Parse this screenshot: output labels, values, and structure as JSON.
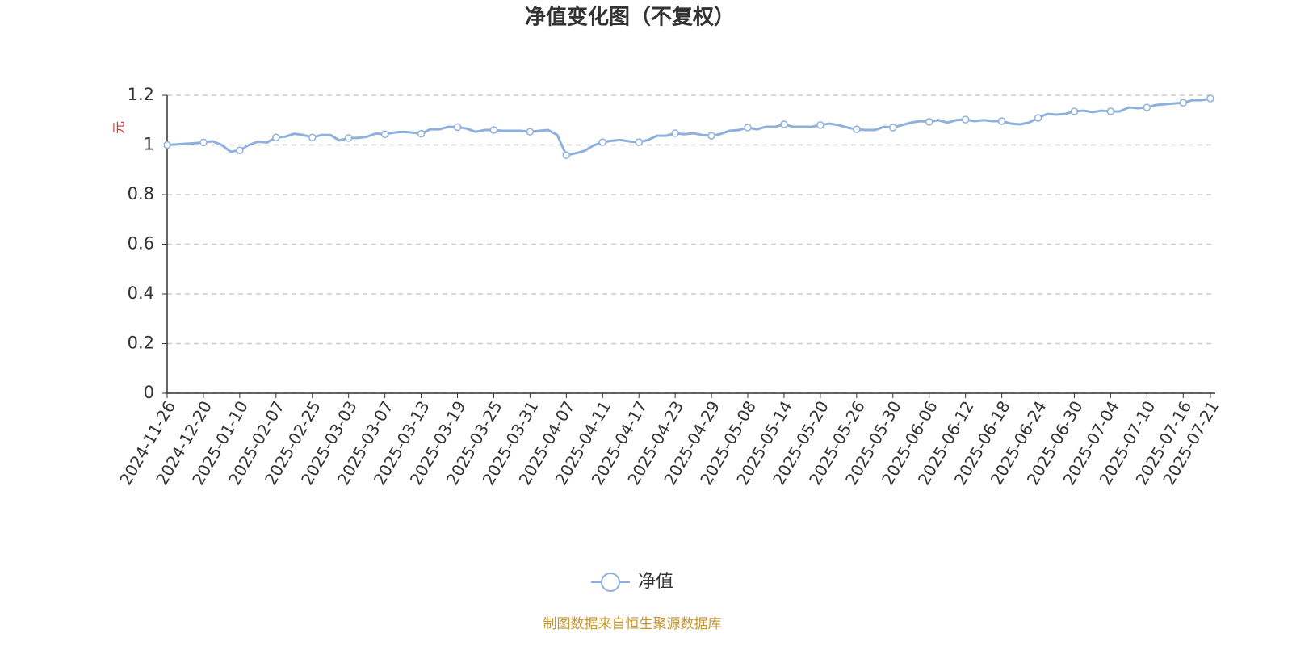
{
  "chart_data": {
    "type": "line",
    "title": "净值变化图（不复权）",
    "y_label": "元",
    "footer": "制图数据来自恒生聚源数据库",
    "categories": [
      "2024-11-26",
      null,
      null,
      null,
      "2024-12-20",
      null,
      null,
      null,
      "2025-01-10",
      null,
      null,
      null,
      "2025-02-07",
      null,
      null,
      null,
      "2025-02-25",
      null,
      null,
      null,
      "2025-03-03",
      null,
      null,
      null,
      "2025-03-07",
      null,
      null,
      null,
      "2025-03-13",
      null,
      null,
      null,
      "2025-03-19",
      null,
      null,
      null,
      "2025-03-25",
      null,
      null,
      null,
      "2025-03-31",
      null,
      null,
      null,
      "2025-04-07",
      null,
      null,
      null,
      "2025-04-11",
      null,
      null,
      null,
      "2025-04-17",
      null,
      null,
      null,
      "2025-04-23",
      null,
      null,
      null,
      "2025-04-29",
      null,
      null,
      null,
      "2025-05-08",
      null,
      null,
      null,
      "2025-05-14",
      null,
      null,
      null,
      "2025-05-20",
      null,
      null,
      null,
      "2025-05-26",
      null,
      null,
      null,
      "2025-05-30",
      null,
      null,
      null,
      "2025-06-06",
      null,
      null,
      null,
      "2025-06-12",
      null,
      null,
      null,
      "2025-06-18",
      null,
      null,
      null,
      "2025-06-24",
      null,
      null,
      null,
      "2025-06-30",
      null,
      null,
      null,
      "2025-07-04",
      null,
      null,
      null,
      "2025-07-10",
      null,
      null,
      null,
      "2025-07-16",
      null,
      null,
      "2025-07-21"
    ],
    "series": [
      {
        "name": "净值",
        "color": "#8fb0dd",
        "values": [
          1.0,
          1.002,
          1.005,
          1.007,
          1.01,
          1.015,
          1.0,
          0.973,
          0.978,
          1.0,
          1.013,
          1.01,
          1.03,
          1.033,
          1.045,
          1.04,
          1.03,
          1.04,
          1.04,
          1.018,
          1.028,
          1.028,
          1.033,
          1.046,
          1.043,
          1.05,
          1.053,
          1.05,
          1.045,
          1.063,
          1.063,
          1.073,
          1.072,
          1.066,
          1.053,
          1.06,
          1.06,
          1.057,
          1.057,
          1.057,
          1.053,
          1.057,
          1.06,
          1.04,
          0.959,
          0.966,
          0.976,
          0.998,
          1.011,
          1.017,
          1.02,
          1.014,
          1.011,
          1.02,
          1.037,
          1.037,
          1.047,
          1.043,
          1.047,
          1.04,
          1.037,
          1.044,
          1.057,
          1.06,
          1.07,
          1.063,
          1.073,
          1.073,
          1.083,
          1.073,
          1.073,
          1.073,
          1.08,
          1.086,
          1.08,
          1.07,
          1.063,
          1.06,
          1.06,
          1.073,
          1.07,
          1.08,
          1.09,
          1.096,
          1.093,
          1.1,
          1.09,
          1.1,
          1.102,
          1.096,
          1.1,
          1.096,
          1.096,
          1.086,
          1.083,
          1.09,
          1.109,
          1.125,
          1.122,
          1.125,
          1.135,
          1.138,
          1.132,
          1.138,
          1.135,
          1.135,
          1.151,
          1.148,
          1.151,
          1.161,
          1.164,
          1.167,
          1.17,
          1.18,
          1.18,
          1.187
        ]
      }
    ],
    "ylim": [
      0,
      1.2
    ],
    "yticks": [
      0,
      0.2,
      0.4,
      0.6,
      0.8,
      1,
      1.2
    ],
    "grid": true
  }
}
